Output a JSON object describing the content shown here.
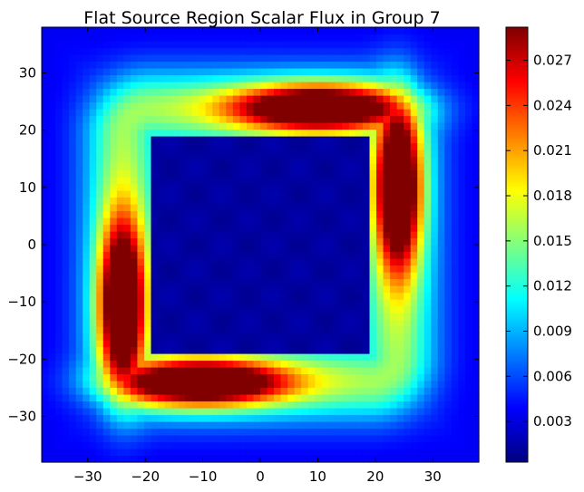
{
  "chart_data": {
    "type": "heatmap",
    "title": "Flat Source Region Scalar Flux in Group 7",
    "xlabel": "",
    "ylabel": "",
    "xlim": [
      -38,
      38
    ],
    "ylim": [
      -38,
      38
    ],
    "grid_size": 64,
    "colormap": "jet",
    "x_ticks": [
      -30,
      -20,
      -10,
      0,
      10,
      20,
      30
    ],
    "x_tick_labels": [
      "−30",
      "−20",
      "−10",
      "0",
      "10",
      "20",
      "30"
    ],
    "y_ticks": [
      30,
      20,
      10,
      0,
      -10,
      -20,
      -30
    ],
    "y_tick_labels": [
      "30",
      "20",
      "10",
      "0",
      "−10",
      "−20",
      "−30"
    ],
    "colorbar": {
      "range": [
        0.0003,
        0.0292
      ],
      "ticks": [
        0.027,
        0.024,
        0.021,
        0.018,
        0.015,
        0.012,
        0.009,
        0.006,
        0.003
      ],
      "tick_labels": [
        "0.027",
        "0.024",
        "0.021",
        "0.018",
        "0.015",
        "0.012",
        "0.009",
        "0.006",
        "0.003"
      ]
    },
    "features": {
      "low_flux_central_square": {
        "x_range": [
          -19,
          19
        ],
        "y_range": [
          -19,
          19
        ],
        "value": 0.0012
      },
      "peak_flux_bands": [
        {
          "location": "top",
          "center": [
            10,
            24
          ],
          "value": 0.029
        },
        {
          "location": "right",
          "center": [
            24,
            10
          ],
          "value": 0.029
        },
        {
          "location": "bottom",
          "center": [
            -10,
            -24
          ],
          "value": 0.029
        },
        {
          "location": "left",
          "center": [
            -24,
            -10
          ],
          "value": 0.029
        }
      ],
      "edge_value": 0.004
    }
  },
  "colors": {
    "jet_low": "#00007f",
    "jet_high": "#7f0000",
    "background": "#ffffff"
  }
}
